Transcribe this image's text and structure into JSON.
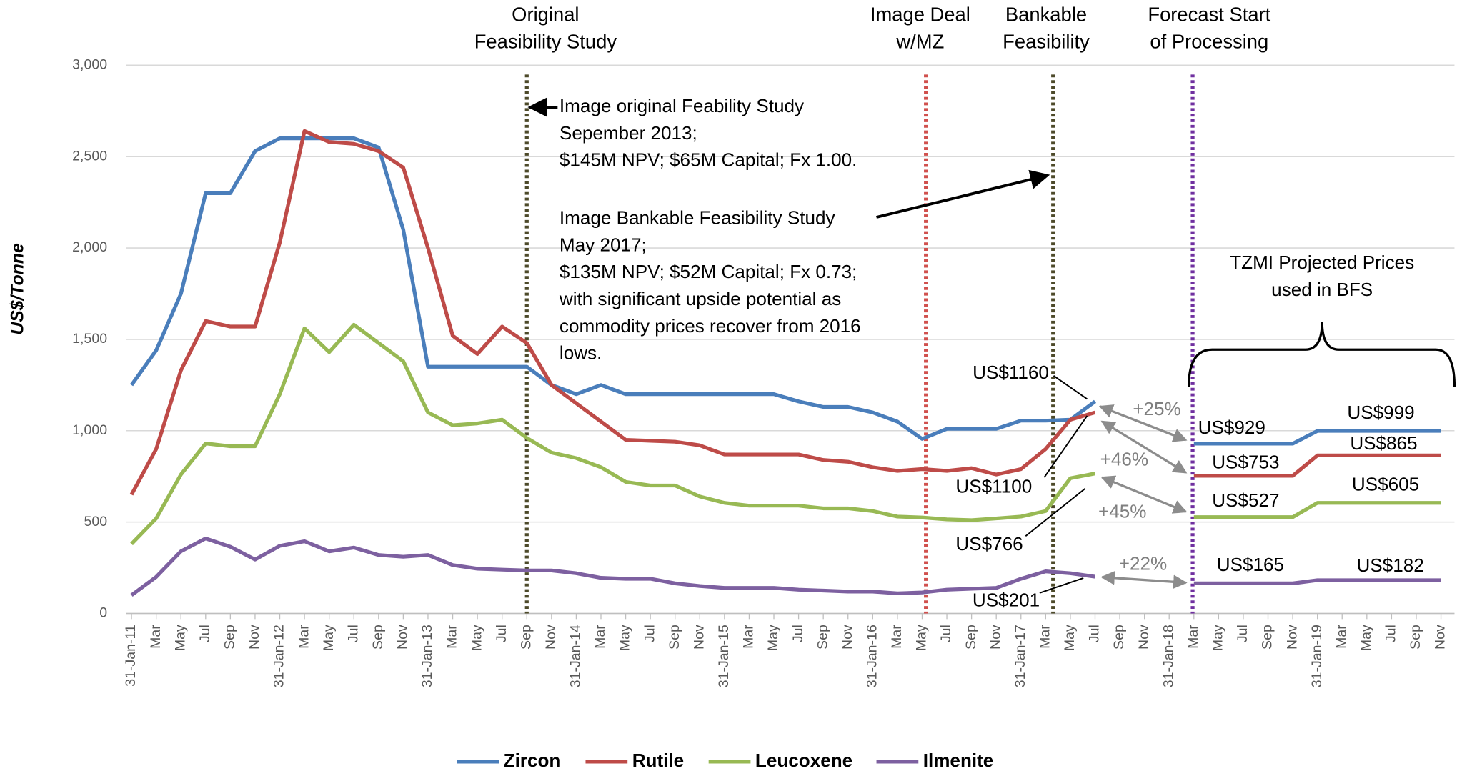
{
  "chart_data": {
    "type": "line",
    "y_label": "US$/Tonne",
    "categories": [
      "31-Jan-11",
      "Mar",
      "May",
      "Jul",
      "Sep",
      "Nov",
      "31-Jan-12",
      "Mar",
      "May",
      "Jul",
      "Sep",
      "Nov",
      "31-Jan-13",
      "Mar",
      "May",
      "Jul",
      "Sep",
      "Nov",
      "31-Jan-14",
      "Mar",
      "May",
      "Jul",
      "Sep",
      "Nov",
      "31-Jan-15",
      "Mar",
      "May",
      "Jul",
      "Sep",
      "Nov",
      "31-Jan-16",
      "Mar",
      "May",
      "Jul",
      "Sep",
      "Nov",
      "31-Jan-17",
      "Mar",
      "May",
      "Jul",
      "Sep",
      "Nov",
      "31-Jan-18",
      "Mar",
      "May",
      "Jul",
      "Sep",
      "Nov",
      "31-Jan-19",
      "Mar",
      "May",
      "Jul",
      "Sep",
      "Nov"
    ],
    "series": [
      {
        "name": "Zircon",
        "color": "#4a7ebb",
        "values": [
          1250,
          1440,
          1750,
          2300,
          2300,
          2530,
          2600,
          2600,
          2600,
          2600,
          2550,
          2100,
          1350,
          1350,
          1350,
          1350,
          1350,
          1250,
          1200,
          1250,
          1200,
          1200,
          1200,
          1200,
          1200,
          1200,
          1200,
          1160,
          1130,
          1130,
          1100,
          1050,
          955,
          1010,
          1010,
          1010,
          1055,
          1055,
          1060,
          1160,
          null,
          null,
          null,
          929,
          929,
          929,
          929,
          929,
          999,
          999,
          999,
          999,
          999,
          999
        ]
      },
      {
        "name": "Rutile",
        "color": "#be4b48",
        "values": [
          650,
          900,
          1330,
          1600,
          1570,
          1570,
          2030,
          2640,
          2580,
          2570,
          2530,
          2440,
          2000,
          1520,
          1420,
          1570,
          1480,
          1250,
          1150,
          1050,
          950,
          945,
          940,
          920,
          870,
          870,
          870,
          870,
          840,
          830,
          800,
          780,
          790,
          780,
          795,
          760,
          790,
          900,
          1060,
          1100,
          null,
          null,
          null,
          753,
          753,
          753,
          753,
          753,
          865,
          865,
          865,
          865,
          865,
          865
        ]
      },
      {
        "name": "Leucoxene",
        "color": "#98b954",
        "values": [
          380,
          520,
          760,
          930,
          915,
          915,
          1200,
          1560,
          1430,
          1580,
          1480,
          1380,
          1100,
          1030,
          1040,
          1060,
          960,
          880,
          850,
          800,
          720,
          700,
          700,
          640,
          605,
          590,
          590,
          590,
          575,
          575,
          560,
          530,
          525,
          515,
          510,
          520,
          530,
          560,
          740,
          766,
          null,
          null,
          null,
          527,
          527,
          527,
          527,
          527,
          605,
          605,
          605,
          605,
          605,
          605
        ]
      },
      {
        "name": "Ilmenite",
        "color": "#7d60a0",
        "values": [
          100,
          200,
          340,
          410,
          365,
          295,
          370,
          395,
          340,
          360,
          320,
          310,
          320,
          265,
          245,
          240,
          235,
          235,
          220,
          195,
          190,
          190,
          165,
          150,
          140,
          140,
          140,
          130,
          125,
          120,
          120,
          110,
          115,
          130,
          135,
          140,
          190,
          230,
          220,
          201,
          null,
          null,
          null,
          165,
          165,
          165,
          165,
          165,
          182,
          182,
          182,
          182,
          182,
          182
        ]
      }
    ],
    "ylim": [
      0,
      3000
    ],
    "yticks": [
      0,
      500,
      {
        "value": 1000,
        "label": "1,000"
      },
      {
        "value": 1500,
        "label": "1,500"
      },
      {
        "value": 2000,
        "label": "2,000"
      },
      {
        "value": 2500,
        "label": "2,500"
      },
      {
        "value": 3000,
        "label": "3,000"
      }
    ],
    "grid": true,
    "legend": "bottom",
    "annotations": [
      {
        "text": [
          "Original",
          "Feasibility Study"
        ]
      },
      {
        "text": [
          "Image Deal",
          "w/MZ"
        ]
      },
      {
        "text": [
          "Bankable",
          "Feasibility"
        ]
      },
      {
        "text": [
          "Forecast Start",
          "of Processing"
        ]
      },
      {
        "text": [
          "Image original Feability Study",
          "Sepember 2013;",
          "$145M NPV; $65M Capital; Fx 1.00."
        ]
      },
      {
        "text": [
          "Image Bankable Feasibility Study",
          "May 2017;",
          "$135M NPV; $52M Capital; Fx 0.73;",
          "with significant upside potential as",
          "commodity prices recover from 2016",
          "lows."
        ]
      },
      {
        "text": [
          "TZMI Projected Prices",
          "used in BFS"
        ]
      },
      {
        "text": [
          "US$1160"
        ]
      },
      {
        "text": [
          "US$1100"
        ]
      },
      {
        "text": [
          "US$766"
        ]
      },
      {
        "text": [
          "US$201"
        ]
      },
      {
        "text": [
          "US$929"
        ]
      },
      {
        "text": [
          "US$999"
        ]
      },
      {
        "text": [
          "US$753"
        ]
      },
      {
        "text": [
          "US$865"
        ]
      },
      {
        "text": [
          "US$527"
        ]
      },
      {
        "text": [
          "US$605"
        ]
      },
      {
        "text": [
          "US$165"
        ]
      },
      {
        "text": [
          "US$182"
        ]
      },
      {
        "text": [
          "+25%"
        ]
      },
      {
        "text": [
          "+46%"
        ]
      },
      {
        "text": [
          "+45%"
        ]
      },
      {
        "text": [
          "+22%"
        ]
      }
    ]
  }
}
